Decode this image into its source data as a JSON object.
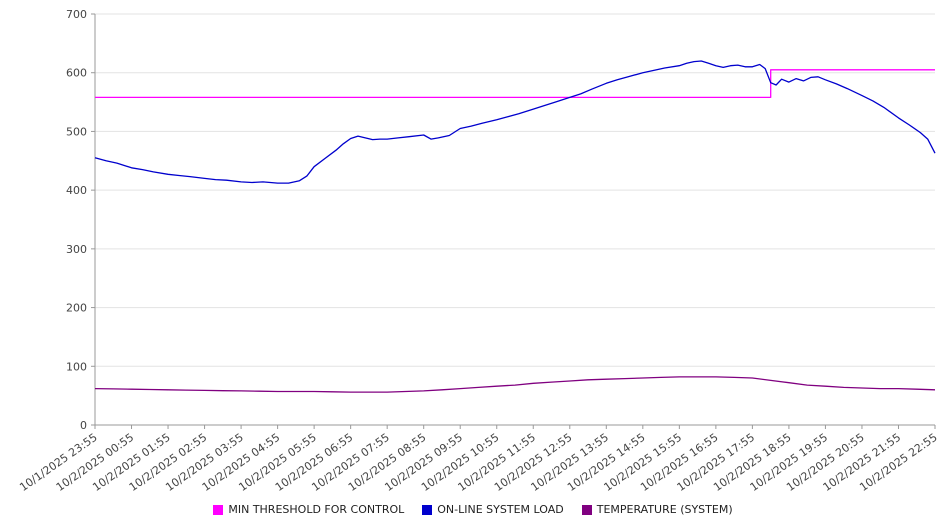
{
  "chart_data": {
    "type": "line",
    "title": "",
    "xlabel": "",
    "ylabel": "",
    "ylim": [
      0,
      700
    ],
    "y_ticks": [
      0,
      100,
      200,
      300,
      400,
      500,
      600,
      700
    ],
    "grid": "horizontal",
    "legend_position": "bottom",
    "x_unit": "hours since first tick (ticks hourly)",
    "x_range": [
      0,
      23
    ],
    "x_tick_labels": [
      "10/1/2025 23:55",
      "10/2/2025 00:55",
      "10/2/2025 01:55",
      "10/2/2025 02:55",
      "10/2/2025 03:55",
      "10/2/2025 04:55",
      "10/2/2025 05:55",
      "10/2/2025 06:55",
      "10/2/2025 07:55",
      "10/2/2025 08:55",
      "10/2/2025 09:55",
      "10/2/2025 10:55",
      "10/2/2025 11:55",
      "10/2/2025 12:55",
      "10/2/2025 13:55",
      "10/2/2025 14:55",
      "10/2/2025 15:55",
      "10/2/2025 16:55",
      "10/2/2025 17:55",
      "10/2/2025 18:55",
      "10/2/2025 19:55",
      "10/2/2025 20:55",
      "10/2/2025 21:55",
      "10/2/2025 22:55"
    ],
    "series": [
      {
        "name": "MIN THRESHOLD FOR CONTROL",
        "color": "#ff00ff",
        "points": [
          [
            0,
            558
          ],
          [
            18.5,
            558
          ],
          [
            18.5,
            605
          ],
          [
            23,
            605
          ]
        ]
      },
      {
        "name": "ON-LINE SYSTEM LOAD",
        "color": "#0000cd",
        "points": [
          [
            0,
            455
          ],
          [
            0.3,
            450
          ],
          [
            0.6,
            446
          ],
          [
            1,
            438
          ],
          [
            1.3,
            435
          ],
          [
            1.6,
            431
          ],
          [
            2,
            427
          ],
          [
            2.3,
            425
          ],
          [
            2.6,
            423
          ],
          [
            3,
            420
          ],
          [
            3.3,
            418
          ],
          [
            3.6,
            417
          ],
          [
            4,
            414
          ],
          [
            4.3,
            413
          ],
          [
            4.6,
            414
          ],
          [
            5,
            412
          ],
          [
            5.3,
            412
          ],
          [
            5.6,
            416
          ],
          [
            5.8,
            424
          ],
          [
            6,
            440
          ],
          [
            6.3,
            454
          ],
          [
            6.6,
            468
          ],
          [
            6.8,
            479
          ],
          [
            7,
            488
          ],
          [
            7.2,
            492
          ],
          [
            7.4,
            489
          ],
          [
            7.6,
            486
          ],
          [
            7.8,
            487
          ],
          [
            8,
            487
          ],
          [
            8.3,
            489
          ],
          [
            8.6,
            491
          ],
          [
            9,
            494
          ],
          [
            9.2,
            487
          ],
          [
            9.4,
            489
          ],
          [
            9.7,
            493
          ],
          [
            10,
            505
          ],
          [
            10.3,
            509
          ],
          [
            10.6,
            514
          ],
          [
            11,
            520
          ],
          [
            11.3,
            525
          ],
          [
            11.6,
            530
          ],
          [
            12,
            538
          ],
          [
            12.3,
            544
          ],
          [
            12.6,
            550
          ],
          [
            13,
            558
          ],
          [
            13.3,
            564
          ],
          [
            13.6,
            572
          ],
          [
            14,
            582
          ],
          [
            14.3,
            588
          ],
          [
            14.6,
            593
          ],
          [
            15,
            600
          ],
          [
            15.3,
            604
          ],
          [
            15.6,
            608
          ],
          [
            16,
            612
          ],
          [
            16.2,
            616
          ],
          [
            16.4,
            619
          ],
          [
            16.6,
            620
          ],
          [
            16.8,
            616
          ],
          [
            17,
            612
          ],
          [
            17.2,
            609
          ],
          [
            17.4,
            612
          ],
          [
            17.6,
            613
          ],
          [
            17.8,
            610
          ],
          [
            18,
            610
          ],
          [
            18.2,
            614
          ],
          [
            18.35,
            607
          ],
          [
            18.5,
            583
          ],
          [
            18.65,
            579
          ],
          [
            18.8,
            589
          ],
          [
            19,
            584
          ],
          [
            19.2,
            590
          ],
          [
            19.4,
            586
          ],
          [
            19.6,
            592
          ],
          [
            19.8,
            593
          ],
          [
            20,
            588
          ],
          [
            20.3,
            581
          ],
          [
            20.6,
            573
          ],
          [
            21,
            561
          ],
          [
            21.3,
            552
          ],
          [
            21.6,
            541
          ],
          [
            22,
            523
          ],
          [
            22.3,
            511
          ],
          [
            22.6,
            498
          ],
          [
            22.8,
            487
          ],
          [
            23,
            463
          ]
        ]
      },
      {
        "name": "TEMPERATURE (SYSTEM)",
        "color": "#800080",
        "points": [
          [
            0,
            62
          ],
          [
            0.5,
            61.5
          ],
          [
            1,
            61
          ],
          [
            1.5,
            60.5
          ],
          [
            2,
            60
          ],
          [
            2.5,
            59.5
          ],
          [
            3,
            59
          ],
          [
            3.5,
            58.5
          ],
          [
            4,
            58
          ],
          [
            4.5,
            57.5
          ],
          [
            5,
            57
          ],
          [
            5.5,
            57
          ],
          [
            6,
            57
          ],
          [
            6.5,
            56.5
          ],
          [
            7,
            56
          ],
          [
            7.5,
            56
          ],
          [
            8,
            56
          ],
          [
            8.5,
            57
          ],
          [
            9,
            58
          ],
          [
            9.5,
            60
          ],
          [
            10,
            62
          ],
          [
            10.5,
            64
          ],
          [
            11,
            66
          ],
          [
            11.5,
            68
          ],
          [
            12,
            71
          ],
          [
            12.5,
            73
          ],
          [
            13,
            75
          ],
          [
            13.5,
            77
          ],
          [
            14,
            78
          ],
          [
            14.5,
            79
          ],
          [
            15,
            80
          ],
          [
            15.5,
            81
          ],
          [
            16,
            82
          ],
          [
            16.5,
            82
          ],
          [
            17,
            82
          ],
          [
            17.5,
            81
          ],
          [
            18,
            80
          ],
          [
            18.5,
            76
          ],
          [
            19,
            72
          ],
          [
            19.5,
            68
          ],
          [
            20,
            66
          ],
          [
            20.5,
            64
          ],
          [
            21,
            63
          ],
          [
            21.5,
            62
          ],
          [
            22,
            62
          ],
          [
            22.5,
            61
          ],
          [
            23,
            60
          ]
        ]
      }
    ],
    "colors": {
      "gridline": "#e3e3e3",
      "axis": "#999999",
      "tick_text": "#444444"
    }
  }
}
